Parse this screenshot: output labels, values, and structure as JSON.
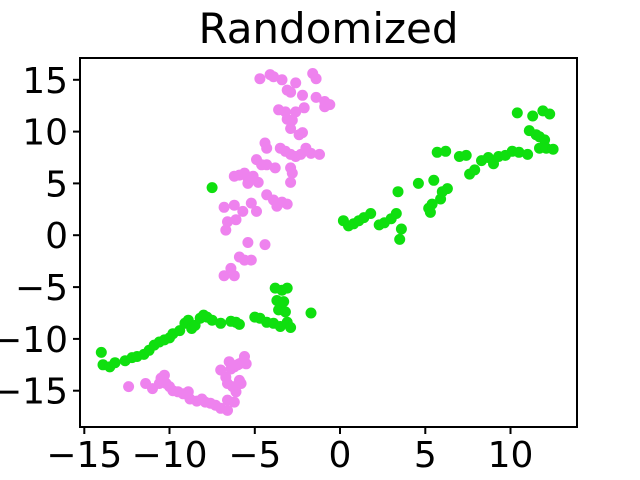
{
  "figure": {
    "background": "#ffffff"
  },
  "chart_data": {
    "type": "scatter",
    "title": "Randomized",
    "xlabel": "",
    "ylabel": "",
    "xlim": [
      -15.25,
      13.9
    ],
    "ylim": [
      -18.5,
      17.1
    ],
    "xticks": [
      -15,
      -10,
      -5,
      0,
      5,
      10
    ],
    "yticks": [
      -15,
      -10,
      -5,
      0,
      5,
      10,
      15
    ],
    "grid": false,
    "legend": "none",
    "axis_color": "#000000",
    "marker_diameter_px": 11,
    "series": [
      {
        "name": "class-green",
        "color": "#0fdf0f",
        "points": [
          [
            -14.0,
            -11.3
          ],
          [
            -13.9,
            -12.5
          ],
          [
            -13.5,
            -12.7
          ],
          [
            -13.2,
            -12.3
          ],
          [
            -12.6,
            -12.1
          ],
          [
            -12.2,
            -11.8
          ],
          [
            -11.9,
            -11.7
          ],
          [
            -11.5,
            -11.5
          ],
          [
            -11.2,
            -11.1
          ],
          [
            -10.9,
            -10.6
          ],
          [
            -10.6,
            -10.3
          ],
          [
            -10.3,
            -10.1
          ],
          [
            -10.0,
            -9.9
          ],
          [
            -9.8,
            -9.5
          ],
          [
            -9.4,
            -9.2
          ],
          [
            -9.1,
            -8.5
          ],
          [
            -8.9,
            -8.2
          ],
          [
            -8.7,
            -9.0
          ],
          [
            -8.5,
            -8.7
          ],
          [
            -8.2,
            -8.0
          ],
          [
            -8.0,
            -7.7
          ],
          [
            -7.8,
            -7.9
          ],
          [
            -7.5,
            -8.2
          ],
          [
            -7.0,
            -8.5
          ],
          [
            -6.4,
            -8.3
          ],
          [
            -6.1,
            -8.4
          ],
          [
            -5.9,
            -8.6
          ],
          [
            -5.0,
            -7.9
          ],
          [
            -4.7,
            -8.0
          ],
          [
            -4.3,
            -8.4
          ],
          [
            -3.9,
            -8.5
          ],
          [
            -3.5,
            -8.8
          ],
          [
            -3.1,
            -8.4
          ],
          [
            -2.9,
            -8.9
          ],
          [
            -3.6,
            -7.2
          ],
          [
            -3.2,
            -7.4
          ],
          [
            -3.7,
            -6.3
          ],
          [
            -3.3,
            -6.4
          ],
          [
            -3.4,
            -5.3
          ],
          [
            -3.1,
            -5.1
          ],
          [
            -3.8,
            -5.1
          ],
          [
            -1.7,
            -7.5
          ],
          [
            -7.5,
            4.6
          ],
          [
            0.2,
            1.4
          ],
          [
            0.5,
            0.9
          ],
          [
            0.8,
            1.1
          ],
          [
            1.1,
            1.4
          ],
          [
            1.4,
            1.7
          ],
          [
            1.8,
            2.1
          ],
          [
            2.3,
            1.0
          ],
          [
            2.6,
            1.2
          ],
          [
            3.0,
            1.6
          ],
          [
            3.3,
            2.1
          ],
          [
            3.6,
            0.6
          ],
          [
            3.5,
            -0.4
          ],
          [
            3.4,
            4.2
          ],
          [
            4.6,
            5.0
          ],
          [
            5.2,
            2.6
          ],
          [
            5.4,
            3.0
          ],
          [
            5.3,
            2.2
          ],
          [
            5.9,
            3.5
          ],
          [
            6.0,
            4.2
          ],
          [
            6.3,
            4.5
          ],
          [
            5.5,
            5.3
          ],
          [
            5.7,
            8.0
          ],
          [
            6.2,
            8.1
          ],
          [
            7.0,
            7.6
          ],
          [
            7.4,
            7.7
          ],
          [
            7.6,
            5.9
          ],
          [
            7.9,
            6.3
          ],
          [
            8.3,
            7.2
          ],
          [
            8.7,
            7.5
          ],
          [
            9.0,
            6.9
          ],
          [
            9.3,
            7.6
          ],
          [
            9.7,
            7.7
          ],
          [
            10.1,
            8.1
          ],
          [
            10.5,
            8.0
          ],
          [
            11.0,
            7.8
          ],
          [
            10.4,
            11.8
          ],
          [
            11.3,
            11.5
          ],
          [
            11.9,
            12.0
          ],
          [
            12.3,
            11.7
          ],
          [
            11.1,
            10.1
          ],
          [
            11.5,
            9.7
          ],
          [
            11.7,
            9.5
          ],
          [
            12.0,
            9.2
          ],
          [
            11.7,
            8.4
          ],
          [
            12.1,
            8.4
          ],
          [
            12.5,
            8.3
          ]
        ]
      },
      {
        "name": "class-violet",
        "color": "#ee82ee",
        "points": [
          [
            -4.7,
            15.1
          ],
          [
            -4.1,
            15.5
          ],
          [
            -3.9,
            15.3
          ],
          [
            -3.4,
            15.0
          ],
          [
            -2.6,
            14.7
          ],
          [
            -1.6,
            15.6
          ],
          [
            -1.4,
            15.1
          ],
          [
            -3.1,
            14.0
          ],
          [
            -2.9,
            13.8
          ],
          [
            -2.2,
            13.5
          ],
          [
            -1.4,
            13.3
          ],
          [
            -0.9,
            12.9
          ],
          [
            -3.6,
            12.1
          ],
          [
            -3.2,
            11.9
          ],
          [
            -2.6,
            11.9
          ],
          [
            -2.1,
            12.3
          ],
          [
            -3.1,
            11.2
          ],
          [
            -2.8,
            11.1
          ],
          [
            -0.9,
            12.4
          ],
          [
            -0.6,
            12.6
          ],
          [
            -2.9,
            10.3
          ],
          [
            -2.4,
            9.7
          ],
          [
            -2.2,
            9.9
          ],
          [
            -4.4,
            8.9
          ],
          [
            -4.3,
            8.4
          ],
          [
            -3.5,
            8.4
          ],
          [
            -3.2,
            8.1
          ],
          [
            -2.9,
            7.8
          ],
          [
            -2.6,
            7.6
          ],
          [
            -2.3,
            7.8
          ],
          [
            -2.0,
            8.4
          ],
          [
            -1.7,
            7.9
          ],
          [
            -1.2,
            7.8
          ],
          [
            -4.9,
            7.3
          ],
          [
            -4.6,
            6.8
          ],
          [
            -4.3,
            6.8
          ],
          [
            -3.8,
            6.5
          ],
          [
            -2.9,
            6.5
          ],
          [
            -2.8,
            6.0
          ],
          [
            -6.2,
            5.7
          ],
          [
            -5.9,
            5.8
          ],
          [
            -5.6,
            6.0
          ],
          [
            -5.4,
            5.5
          ],
          [
            -5.1,
            5.7
          ],
          [
            -4.8,
            5.1
          ],
          [
            -5.4,
            5.0
          ],
          [
            -2.9,
            5.1
          ],
          [
            -4.3,
            3.9
          ],
          [
            -3.9,
            3.4
          ],
          [
            -3.4,
            3.2
          ],
          [
            -3.1,
            3.0
          ],
          [
            -3.7,
            2.8
          ],
          [
            -6.8,
            2.7
          ],
          [
            -6.2,
            2.9
          ],
          [
            -5.2,
            3.1
          ],
          [
            -5.7,
            2.3
          ],
          [
            -4.9,
            2.3
          ],
          [
            -6.6,
            1.3
          ],
          [
            -6.1,
            1.5
          ],
          [
            -6.7,
            0.5
          ],
          [
            -5.4,
            -0.7
          ],
          [
            -4.4,
            -0.9
          ],
          [
            -5.9,
            -2.1
          ],
          [
            -5.6,
            -2.4
          ],
          [
            -5.2,
            -2.4
          ],
          [
            -6.4,
            -3.2
          ],
          [
            -6.8,
            -3.9
          ],
          [
            -6.2,
            -3.9
          ],
          [
            -12.4,
            -14.6
          ],
          [
            -11.4,
            -14.3
          ],
          [
            -11.0,
            -14.8
          ],
          [
            -10.6,
            -14.3
          ],
          [
            -10.5,
            -13.8
          ],
          [
            -10.3,
            -13.5
          ],
          [
            -10.2,
            -14.3
          ],
          [
            -10.0,
            -14.6
          ],
          [
            -9.8,
            -15.0
          ],
          [
            -9.5,
            -15.1
          ],
          [
            -9.2,
            -15.3
          ],
          [
            -8.9,
            -15.1
          ],
          [
            -8.8,
            -15.8
          ],
          [
            -8.4,
            -16.0
          ],
          [
            -8.1,
            -15.8
          ],
          [
            -7.9,
            -16.1
          ],
          [
            -7.6,
            -16.2
          ],
          [
            -7.3,
            -16.4
          ],
          [
            -7.0,
            -16.7
          ],
          [
            -6.6,
            -16.9
          ],
          [
            -6.2,
            -16.1
          ],
          [
            -6.6,
            -15.9
          ],
          [
            -7.0,
            -13.0
          ],
          [
            -6.7,
            -13.7
          ],
          [
            -6.6,
            -14.3
          ],
          [
            -6.5,
            -12.2
          ],
          [
            -6.4,
            -12.9
          ],
          [
            -6.2,
            -12.7
          ],
          [
            -6.0,
            -12.5
          ],
          [
            -5.9,
            -12.4
          ],
          [
            -5.7,
            -12.2
          ],
          [
            -5.5,
            -12.4
          ],
          [
            -6.3,
            -14.6
          ],
          [
            -6.1,
            -15.1
          ],
          [
            -5.9,
            -14.0
          ],
          [
            -5.8,
            -14.3
          ],
          [
            -5.6,
            -11.7
          ]
        ]
      }
    ]
  }
}
